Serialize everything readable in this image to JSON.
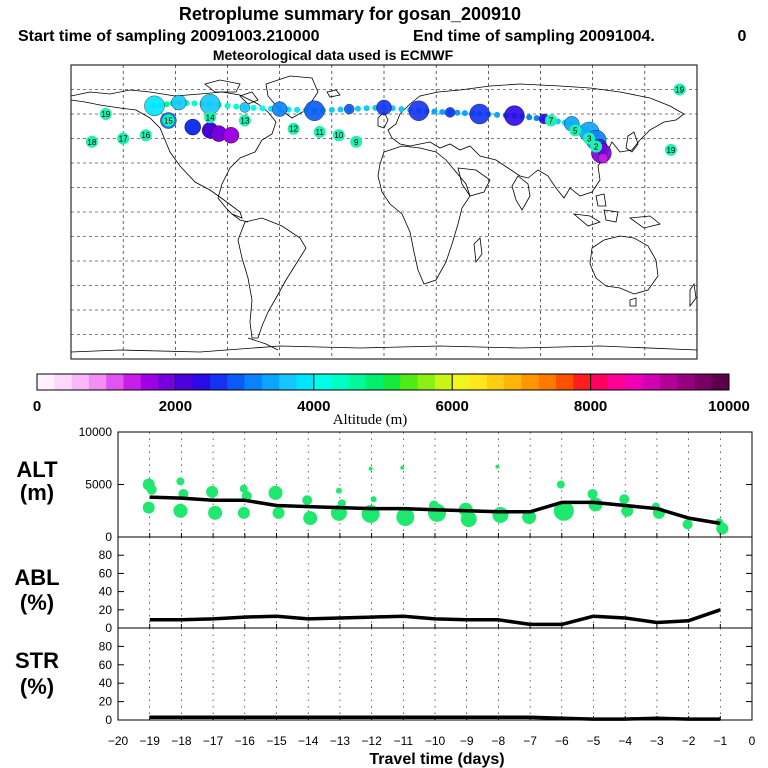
{
  "header": {
    "title": "Retroplume summary for gosan_200910",
    "start_label": "Start time of sampling 20091003.210000",
    "end_label": "End time of sampling 20091004.",
    "end_suffix": "0",
    "met_label": "Meteorological data used is ECMWF"
  },
  "colorbar": {
    "colors": [
      "#fff0ff",
      "#fdd8fd",
      "#f9b8f9",
      "#f48df4",
      "#e055f0",
      "#c81ee8",
      "#a000e6",
      "#7800dc",
      "#4b00dc",
      "#2a0ae6",
      "#1432f0",
      "#0a5af8",
      "#0a82ff",
      "#0aa5ff",
      "#14c8ff",
      "#00e6ff",
      "#00ffe6",
      "#00ffc8",
      "#00fa9a",
      "#00f06e",
      "#14eb3c",
      "#50eb14",
      "#8cf014",
      "#c8f514",
      "#f0f51e",
      "#ffe61e",
      "#ffcd14",
      "#ffb40a",
      "#ff9600",
      "#ff7800",
      "#ff5000",
      "#ff1e1e",
      "#ff0060",
      "#ff0096",
      "#f000b4",
      "#d200b4",
      "#b40096",
      "#96007d",
      "#780064",
      "#5a004b"
    ],
    "tick_labels": [
      "0",
      "2000",
      "4000",
      "6000",
      "8000",
      "10000"
    ],
    "title": "Altitude (m)"
  },
  "map": {
    "overlay_labels": [
      "19",
      "18",
      "18",
      "17",
      "16",
      "15",
      "15",
      "14",
      "14",
      "13",
      "12",
      "11",
      "10",
      "9",
      "8",
      "7",
      "6",
      "5",
      "4",
      "3",
      "2",
      "1",
      "19",
      "18",
      "17",
      "16",
      "14",
      "12"
    ],
    "lon_ticks": [
      -180,
      -150,
      -120,
      -90,
      -60,
      -30,
      0,
      30,
      60,
      90,
      120,
      150,
      180
    ],
    "lat_ticks": [
      90,
      75,
      60,
      45,
      30,
      15,
      0,
      -15,
      -30,
      -45,
      -60,
      -75,
      -90
    ],
    "plume_track": [
      {
        "day": -19,
        "lon": -132,
        "lat": 65,
        "alt": 3800
      },
      {
        "day": -18,
        "lon": -118,
        "lat": 67,
        "alt": 3700
      },
      {
        "day": -17,
        "lon": -100,
        "lat": 66,
        "alt": 3500
      },
      {
        "day": -16,
        "lon": -80,
        "lat": 64,
        "alt": 3500
      },
      {
        "day": -15,
        "lon": -60,
        "lat": 63,
        "alt": 3000
      },
      {
        "day": -14,
        "lon": -40,
        "lat": 62,
        "alt": 2900
      },
      {
        "day": -13,
        "lon": -20,
        "lat": 63,
        "alt": 2800
      },
      {
        "day": -12,
        "lon": 0,
        "lat": 64,
        "alt": 2700
      },
      {
        "day": -11,
        "lon": 20,
        "lat": 62,
        "alt": 2700
      },
      {
        "day": -10,
        "lon": 38,
        "lat": 61,
        "alt": 2600
      },
      {
        "day": -9,
        "lon": 55,
        "lat": 60,
        "alt": 2500
      },
      {
        "day": -8,
        "lon": 75,
        "lat": 59,
        "alt": 2400
      },
      {
        "day": -7,
        "lon": 92,
        "lat": 57,
        "alt": 2400
      },
      {
        "day": -6,
        "lon": 108,
        "lat": 54,
        "alt": 3300
      },
      {
        "day": -5,
        "lon": 118,
        "lat": 49,
        "alt": 3300
      },
      {
        "day": -4,
        "lon": 122,
        "lat": 44,
        "alt": 3000
      },
      {
        "day": -3,
        "lon": 124,
        "lat": 40,
        "alt": 2700
      },
      {
        "day": -2,
        "lon": 125,
        "lat": 36,
        "alt": 1800
      },
      {
        "day": -1,
        "lon": 126,
        "lat": 33,
        "alt": 1300
      }
    ],
    "label_anchors": [
      {
        "t": "15",
        "lon": -124,
        "lat": 56
      },
      {
        "t": "14",
        "lon": -100,
        "lat": 58
      },
      {
        "t": "13",
        "lon": -80,
        "lat": 56
      },
      {
        "t": "12",
        "lon": -52,
        "lat": 51
      },
      {
        "t": "11",
        "lon": -37,
        "lat": 49
      },
      {
        "t": "10",
        "lon": -26,
        "lat": 47
      },
      {
        "t": "9",
        "lon": -16,
        "lat": 43
      },
      {
        "t": "19",
        "lon": -160,
        "lat": 60
      },
      {
        "t": "18",
        "lon": -168,
        "lat": 43
      },
      {
        "t": "17",
        "lon": -150,
        "lat": 45
      },
      {
        "t": "16",
        "lon": -137,
        "lat": 47
      },
      {
        "t": "19",
        "lon": 170,
        "lat": 75
      },
      {
        "t": "19",
        "lon": 165,
        "lat": 38
      },
      {
        "t": "7",
        "lon": 96,
        "lat": 56
      },
      {
        "t": "5",
        "lon": 110,
        "lat": 50
      },
      {
        "t": "3",
        "lon": 118,
        "lat": 45
      },
      {
        "t": "2",
        "lon": 122,
        "lat": 40
      }
    ]
  },
  "labels": {
    "alt_label": "ALT",
    "alt_unit": "(m)",
    "abl_label": "ABL",
    "abl_unit": "(%)",
    "str_label": "STR",
    "str_unit": "(%)",
    "xlabel": "Travel time (days)"
  },
  "chart_data": [
    {
      "type": "line",
      "name": "ALT",
      "ylabel": "ALT (m)",
      "ylim": [
        0,
        10000
      ],
      "ytick_labels": [
        "10000",
        "5000",
        "0"
      ],
      "xlim": [
        -20,
        0
      ],
      "x": [
        -19,
        -18,
        -17,
        -16,
        -15,
        -14,
        -13,
        -12,
        -11,
        -10,
        -9,
        -8,
        -7,
        -6,
        -5,
        -4,
        -3,
        -2,
        -1
      ],
      "series": [
        {
          "name": "median altitude",
          "values": [
            3800,
            3700,
            3500,
            3500,
            3000,
            2900,
            2800,
            2700,
            2700,
            2600,
            2500,
            2400,
            2400,
            3300,
            3300,
            3000,
            2700,
            1800,
            1300
          ]
        }
      ],
      "clusters": [
        {
          "x": -19,
          "alts": [
            5000,
            4500,
            2800
          ],
          "sizes": [
            6,
            5,
            6
          ]
        },
        {
          "x": -18,
          "alts": [
            5300,
            4100,
            2500
          ],
          "sizes": [
            4,
            5,
            7
          ]
        },
        {
          "x": -17,
          "alts": [
            4300,
            2300
          ],
          "sizes": [
            6,
            7
          ]
        },
        {
          "x": -16,
          "alts": [
            4600,
            3900,
            2300
          ],
          "sizes": [
            4,
            5,
            6
          ]
        },
        {
          "x": -15,
          "alts": [
            4200,
            2300
          ],
          "sizes": [
            7,
            6
          ]
        },
        {
          "x": -14,
          "alts": [
            3500,
            1800
          ],
          "sizes": [
            5,
            7
          ]
        },
        {
          "x": -13,
          "alts": [
            4400,
            3200,
            2300
          ],
          "sizes": [
            3,
            4,
            8
          ]
        },
        {
          "x": -12,
          "alts": [
            6500,
            3600,
            2200
          ],
          "sizes": [
            2,
            3,
            9
          ]
        },
        {
          "x": -11,
          "alts": [
            6600,
            1900
          ],
          "sizes": [
            2,
            9
          ]
        },
        {
          "x": -10,
          "alts": [
            3000,
            2300
          ],
          "sizes": [
            5,
            9
          ]
        },
        {
          "x": -9,
          "alts": [
            2600,
            1700
          ],
          "sizes": [
            7,
            8
          ]
        },
        {
          "x": -8,
          "alts": [
            6700,
            2100
          ],
          "sizes": [
            2,
            8
          ]
        },
        {
          "x": -7,
          "alts": [
            1900
          ],
          "sizes": [
            7
          ]
        },
        {
          "x": -6,
          "alts": [
            5000,
            2500
          ],
          "sizes": [
            4,
            10
          ]
        },
        {
          "x": -5,
          "alts": [
            4100,
            3100
          ],
          "sizes": [
            5,
            7
          ]
        },
        {
          "x": -4,
          "alts": [
            3600,
            2500
          ],
          "sizes": [
            5,
            6
          ]
        },
        {
          "x": -3,
          "alts": [
            2900,
            2300
          ],
          "sizes": [
            4,
            6
          ]
        },
        {
          "x": -2,
          "alts": [
            1200
          ],
          "sizes": [
            5
          ]
        },
        {
          "x": -1,
          "alts": [
            1400,
            800
          ],
          "sizes": [
            4,
            6
          ]
        }
      ]
    },
    {
      "type": "line",
      "name": "ABL",
      "ylabel": "ABL (%)",
      "ylim": [
        0,
        100
      ],
      "ytick_labels": [
        "80",
        "60",
        "40",
        "20",
        "0"
      ],
      "xlim": [
        -20,
        0
      ],
      "x": [
        -19,
        -18,
        -17,
        -16,
        -15,
        -14,
        -13,
        -12,
        -11,
        -10,
        -9,
        -8,
        -7,
        -6,
        -5,
        -4,
        -3,
        -2,
        -1
      ],
      "series": [
        {
          "name": "ABL fraction",
          "values": [
            9,
            9,
            10,
            12,
            13,
            10,
            11,
            12,
            13,
            10,
            9,
            9,
            4,
            4,
            13,
            11,
            6,
            8,
            20
          ]
        }
      ]
    },
    {
      "type": "line",
      "name": "STR",
      "ylabel": "STR (%)",
      "ylim": [
        0,
        100
      ],
      "ytick_labels": [
        "80",
        "60",
        "40",
        "20",
        "0"
      ],
      "xlim": [
        -20,
        0
      ],
      "xlabel": "Travel time (days)",
      "xtick_labels": [
        "−20",
        "−19",
        "−18",
        "−17",
        "−16",
        "−15",
        "−14",
        "−13",
        "−12",
        "−11",
        "−10",
        "−9",
        "−8",
        "−7",
        "−6",
        "−5",
        "−4",
        "−3",
        "−2",
        "−1",
        "0"
      ],
      "x": [
        -19,
        -18,
        -17,
        -16,
        -15,
        -14,
        -13,
        -12,
        -11,
        -10,
        -9,
        -8,
        -7,
        -6,
        -5,
        -4,
        -3,
        -2,
        -1
      ],
      "series": [
        {
          "name": "STR fraction",
          "values": [
            3,
            3,
            3,
            3,
            3,
            3,
            3,
            3,
            3,
            3,
            3,
            3,
            3,
            2,
            1,
            1,
            2,
            1,
            1
          ]
        }
      ]
    }
  ]
}
